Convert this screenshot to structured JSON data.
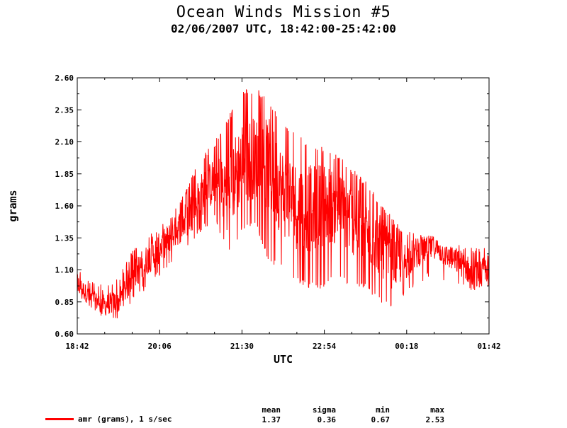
{
  "title": "Ocean Winds Mission #5",
  "subtitle": "02/06/2007  UTC, 18:42:00-25:42:00",
  "chart_data": {
    "type": "line",
    "xlabel": "UTC",
    "ylabel": "grams",
    "xlim": [
      "18:42",
      "01:42"
    ],
    "ylim": [
      0.6,
      2.6
    ],
    "y_ticks": [
      "0.60",
      "0.85",
      "1.10",
      "1.35",
      "1.60",
      "1.85",
      "2.10",
      "2.35",
      "2.60"
    ],
    "x_ticks": [
      "18:42",
      "20:06",
      "21:30",
      "22:54",
      "00:18",
      "01:42"
    ],
    "grid": false,
    "series": [
      {
        "name": "amr (grams), 1 s/sec",
        "color": "#ff0000",
        "x": [
          "18:42",
          "18:56",
          "19:10",
          "19:24",
          "19:38",
          "19:52",
          "20:06",
          "20:20",
          "20:34",
          "20:48",
          "21:02",
          "21:16",
          "21:30",
          "21:44",
          "21:58",
          "22:12",
          "22:26",
          "22:40",
          "22:54",
          "23:08",
          "23:22",
          "23:36",
          "23:50",
          "00:04",
          "00:18",
          "00:32",
          "00:46",
          "01:00",
          "01:14",
          "01:28",
          "01:42"
        ],
        "values": [
          1.0,
          0.87,
          0.83,
          0.85,
          1.05,
          1.17,
          1.27,
          1.38,
          1.5,
          1.68,
          1.8,
          1.72,
          1.95,
          1.98,
          1.9,
          1.7,
          1.6,
          1.58,
          1.62,
          1.58,
          1.5,
          1.4,
          1.3,
          1.15,
          1.18,
          1.25,
          1.28,
          1.2,
          1.15,
          1.05,
          1.12
        ],
        "min_envelope": [
          0.9,
          0.78,
          0.72,
          0.72,
          0.85,
          0.95,
          1.05,
          1.15,
          1.25,
          1.4,
          1.48,
          1.2,
          1.4,
          1.45,
          1.15,
          1.1,
          1.0,
          0.95,
          0.95,
          1.05,
          0.95,
          0.95,
          0.85,
          0.8,
          0.9,
          1.0,
          1.05,
          1.0,
          0.95,
          0.9,
          0.95
        ],
        "max_envelope": [
          1.13,
          1.02,
          0.98,
          1.05,
          1.25,
          1.35,
          1.45,
          1.55,
          1.75,
          1.98,
          2.1,
          2.3,
          2.5,
          2.53,
          2.42,
          2.25,
          2.15,
          2.1,
          2.05,
          2.0,
          1.9,
          1.8,
          1.65,
          1.5,
          1.4,
          1.38,
          1.35,
          1.3,
          1.3,
          1.28,
          1.3
        ]
      }
    ],
    "stats": {
      "headers": [
        "mean",
        "sigma",
        "min",
        "max"
      ],
      "values": [
        "1.37",
        "0.36",
        "0.67",
        "2.53"
      ]
    }
  }
}
